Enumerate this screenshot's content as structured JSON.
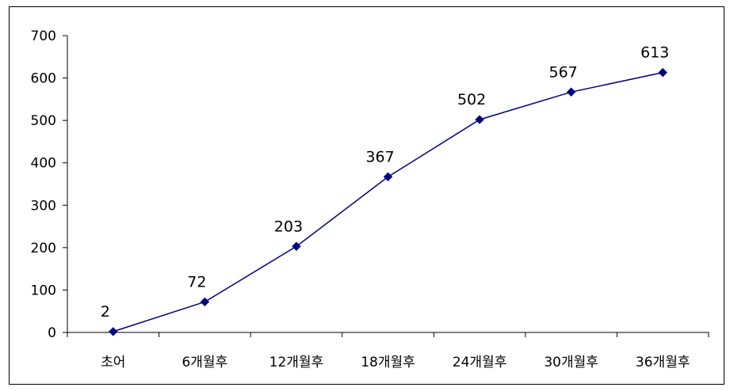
{
  "chart_data": {
    "type": "line",
    "title": "",
    "xlabel": "",
    "ylabel": "",
    "categories": [
      "초어",
      "6개월후",
      "12개월후",
      "18개월후",
      "24개월후",
      "30개월후",
      "36개월후"
    ],
    "series": [
      {
        "values": [
          2,
          72,
          203,
          367,
          502,
          567,
          613
        ],
        "color": "#000080"
      }
    ],
    "ylim": [
      0,
      700
    ],
    "yticks": [
      0,
      100,
      200,
      300,
      400,
      500,
      600,
      700
    ],
    "data_labels": true,
    "grid": false,
    "legend": "none",
    "axis_color": "#000000",
    "marker": "diamond"
  }
}
